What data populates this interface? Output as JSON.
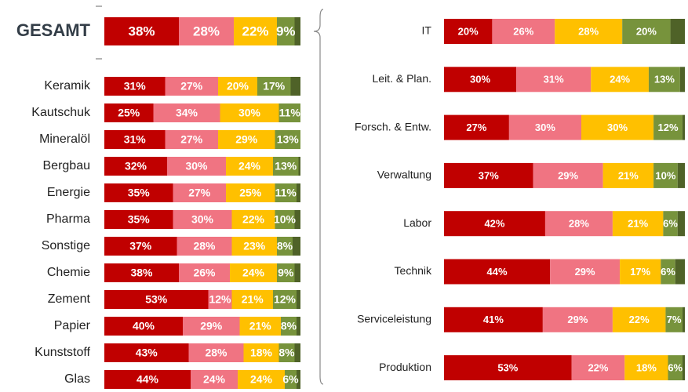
{
  "chart_data": [
    {
      "type": "bar",
      "orientation": "horizontal",
      "stacked": true,
      "categories": [
        "GESAMT",
        "Keramik",
        "Kautschuk",
        "Mineralöl",
        "Bergbau",
        "Energie",
        "Pharma",
        "Sonstige",
        "Chemie",
        "Zement",
        "Papier",
        "Kunststoff",
        "Glas"
      ],
      "series": [
        {
          "color": "#c00000",
          "values": [
            38,
            31,
            25,
            31,
            32,
            35,
            35,
            37,
            38,
            53,
            40,
            43,
            44
          ],
          "value_labels": [
            "38%",
            "31%",
            "25%",
            "31%",
            "32%",
            "35%",
            "35%",
            "37%",
            "38%",
            "53%",
            "40%",
            "43%",
            "44%"
          ]
        },
        {
          "color": "#f07482",
          "values": [
            28,
            27,
            34,
            27,
            30,
            27,
            30,
            28,
            26,
            12,
            29,
            28,
            24
          ],
          "value_labels": [
            "28%",
            "27%",
            "34%",
            "27%",
            "30%",
            "27%",
            "30%",
            "28%",
            "26%",
            "12%",
            "29%",
            "28%",
            "24%"
          ]
        },
        {
          "color": "#ffc000",
          "values": [
            22,
            20,
            30,
            29,
            24,
            25,
            22,
            23,
            24,
            21,
            21,
            18,
            24
          ],
          "value_labels": [
            "22%",
            "20%",
            "30%",
            "29%",
            "24%",
            "25%",
            "22%",
            "23%",
            "24%",
            "21%",
            "21%",
            "18%",
            "24%"
          ]
        },
        {
          "color": "#77933c",
          "values": [
            9,
            17,
            11,
            13,
            13,
            11,
            10,
            8,
            9,
            12,
            8,
            8,
            6
          ],
          "value_labels": [
            "9%",
            "17%",
            "11%",
            "13%",
            "13%",
            "11%",
            "10%",
            "8%",
            "9%",
            "12%",
            "8%",
            "8%",
            "6%"
          ]
        },
        {
          "color": "#4f6228",
          "values": [
            3,
            5,
            0,
            0,
            1,
            2,
            3,
            4,
            3,
            2,
            2,
            3,
            2
          ]
        }
      ],
      "xlim": [
        0,
        100
      ],
      "xticks": [
        50,
        100
      ],
      "grid": true
    },
    {
      "type": "bar",
      "orientation": "horizontal",
      "stacked": true,
      "categories": [
        "IT",
        "Leit. & Plan.",
        "Forsch. & Entw.",
        "Verwaltung",
        "Labor",
        "Technik",
        "Serviceleistung",
        "Produktion"
      ],
      "series": [
        {
          "color": "#c00000",
          "values": [
            20,
            30,
            27,
            37,
            42,
            44,
            41,
            53
          ],
          "value_labels": [
            "20%",
            "30%",
            "27%",
            "37%",
            "42%",
            "44%",
            "41%",
            "53%"
          ]
        },
        {
          "color": "#f07482",
          "values": [
            26,
            31,
            30,
            29,
            28,
            29,
            29,
            22
          ],
          "value_labels": [
            "26%",
            "31%",
            "30%",
            "29%",
            "28%",
            "29%",
            "29%",
            "22%"
          ]
        },
        {
          "color": "#ffc000",
          "values": [
            28,
            24,
            30,
            21,
            21,
            17,
            22,
            18
          ],
          "value_labels": [
            "28%",
            "24%",
            "30%",
            "21%",
            "21%",
            "17%",
            "22%",
            "18%"
          ]
        },
        {
          "color": "#77933c",
          "values": [
            20,
            13,
            12,
            10,
            6,
            6,
            7,
            6
          ],
          "value_labels": [
            "20%",
            "13%",
            "12%",
            "10%",
            "6%",
            "6%",
            "7%",
            "6%"
          ]
        },
        {
          "color": "#4f6228",
          "values": [
            6,
            2,
            1,
            3,
            3,
            4,
            1,
            1
          ]
        }
      ],
      "xlim": [
        0,
        100
      ],
      "xticks": [
        50,
        100
      ],
      "grid": true
    }
  ]
}
